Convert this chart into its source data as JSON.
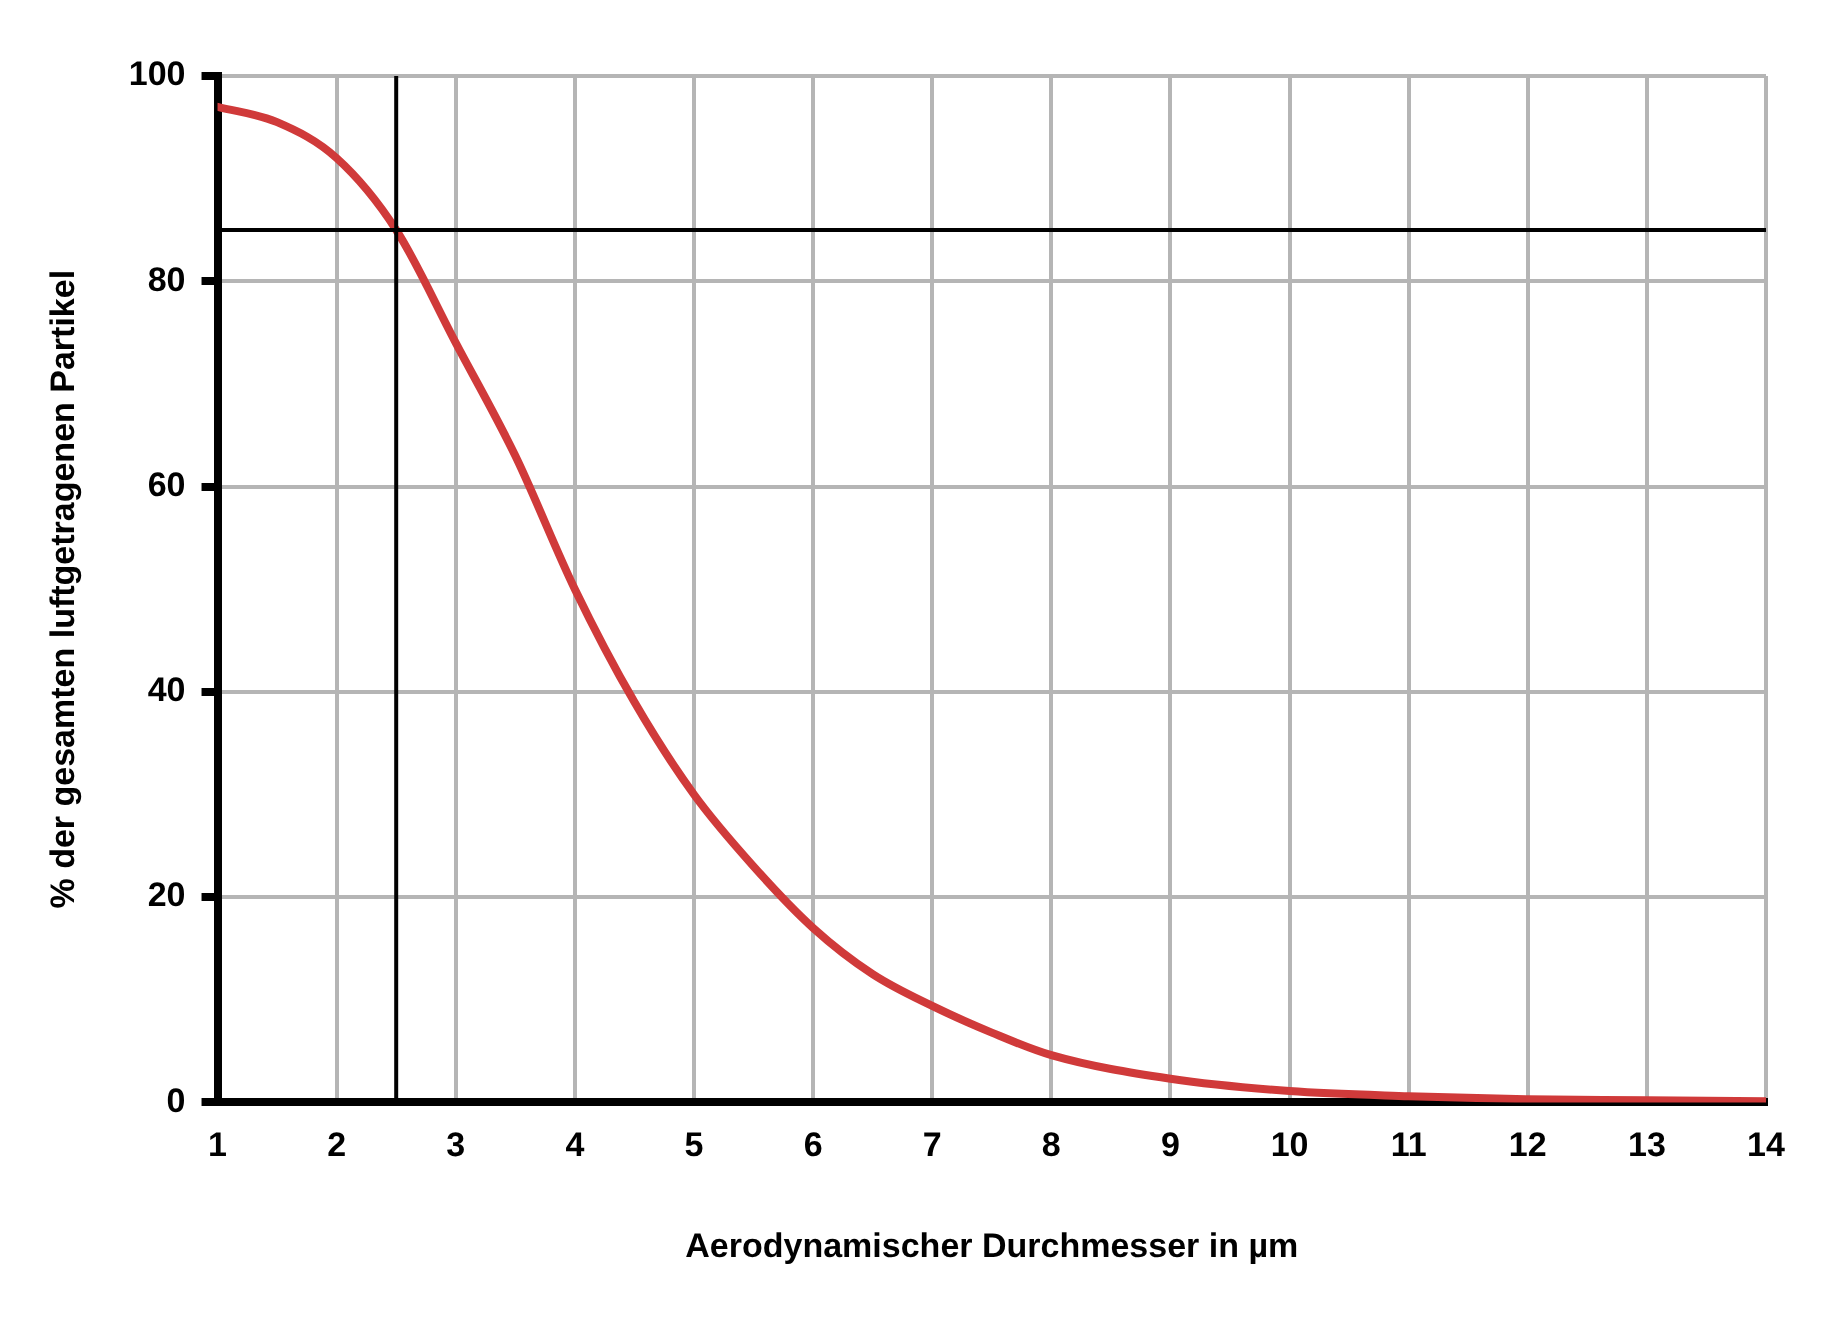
{
  "chart_data": {
    "type": "line",
    "xlabel": "Aerodynamischer Durchmesser in µm",
    "ylabel": "% der gesamten luftgetragenen Partikel",
    "x": [
      1,
      1.5,
      2,
      2.5,
      3,
      3.5,
      4,
      4.5,
      5,
      5.5,
      6,
      6.5,
      7,
      7.5,
      8,
      9,
      10,
      11,
      12,
      13,
      14
    ],
    "series": [
      {
        "color": "#d03a3a",
        "values": [
          97,
          95.5,
          92,
          85,
          74,
          63,
          50,
          39,
          30,
          23,
          17,
          12.5,
          9.4,
          6.8,
          4.6,
          2.3,
          1.1,
          0.6,
          0.3,
          0.2,
          0.1
        ]
      }
    ],
    "xlim": [
      1,
      14
    ],
    "xticks": [
      1,
      2,
      3,
      4,
      5,
      6,
      7,
      8,
      9,
      10,
      11,
      12,
      13,
      14
    ],
    "ylim": [
      0,
      100
    ],
    "yticks": [
      0,
      20,
      40,
      60,
      80,
      100
    ],
    "ref_lines": [
      {
        "axis": "y",
        "value": 85,
        "color": "#000000"
      },
      {
        "axis": "x",
        "value": 2.5,
        "color": "#000000"
      }
    ],
    "grid": true,
    "marker": "none",
    "line_style": "solid",
    "legend": false
  }
}
